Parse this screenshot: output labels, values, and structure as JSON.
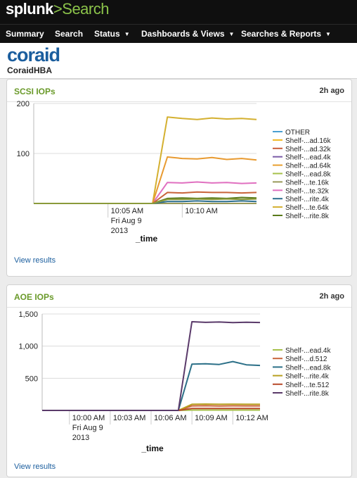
{
  "app": {
    "logo": "splunk",
    "separator": ">",
    "name": "Search"
  },
  "nav": [
    {
      "label": "Summary",
      "dropdown": false
    },
    {
      "label": "Search",
      "dropdown": false
    },
    {
      "label": "Status",
      "dropdown": true
    },
    {
      "label": "Dashboards & Views",
      "dropdown": true
    },
    {
      "label": "Searches & Reports",
      "dropdown": true
    }
  ],
  "header": {
    "brand": "coraid",
    "dashboard": "CoraidHBA"
  },
  "colors": {
    "accent_green": "#6a9a2a",
    "link_blue": "#1b5e9e",
    "brand_blue": "#1b5e9e"
  },
  "panels": [
    {
      "title": "SCSI IOPs",
      "time": "2h ago",
      "link": "View results"
    },
    {
      "title": "AOE IOPs",
      "time": "2h ago",
      "link": "View results"
    }
  ],
  "chart_data": [
    {
      "type": "line",
      "title": "SCSI IOPs",
      "xlabel": "_time",
      "ylabel": "",
      "ylim": [
        0,
        200
      ],
      "yticks": [
        {
          "v": 100,
          "label": "100"
        },
        {
          "v": 200,
          "label": "200"
        }
      ],
      "xticks": [
        {
          "t": "10:05",
          "lines": [
            "10:05 AM",
            "Fri Aug 9",
            "2013"
          ]
        },
        {
          "t": "10:10",
          "lines": [
            "10:10 AM"
          ]
        }
      ],
      "x": [
        "10:00",
        "10:01",
        "10:02",
        "10:03",
        "10:04",
        "10:05",
        "10:06",
        "10:07",
        "10:08",
        "10:09",
        "10:10",
        "10:11",
        "10:12",
        "10:13",
        "10:14",
        "10:15"
      ],
      "grid": true,
      "legend_position": "right",
      "series": [
        {
          "name": "OTHER",
          "color": "#4a9fd1",
          "values": [
            0,
            0,
            0,
            0,
            0,
            0,
            0,
            0,
            0,
            0,
            0,
            0,
            0,
            0,
            0,
            0
          ]
        },
        {
          "name": "Shelf-...ad.16k",
          "color": "#f0b820",
          "values": [
            0,
            0,
            0,
            0,
            0,
            0,
            0,
            0,
            0,
            0,
            0,
            0,
            0,
            0,
            0,
            0
          ]
        },
        {
          "name": "Shelf-...ad.32k",
          "color": "#c85d3a",
          "values": [
            0,
            0,
            0,
            0,
            0,
            0,
            0,
            0,
            0,
            0,
            0,
            0,
            0,
            0,
            0,
            0
          ]
        },
        {
          "name": "Shelf-...ead.4k",
          "color": "#7b5ca8",
          "values": [
            0,
            0,
            0,
            0,
            0,
            0,
            0,
            0,
            0,
            0,
            0,
            0,
            0,
            0,
            0,
            0
          ]
        },
        {
          "name": "Shelf-...ad.64k",
          "color": "#e8a030",
          "values": [
            0,
            0,
            0,
            0,
            0,
            0,
            0,
            0,
            0,
            0,
            0,
            0,
            0,
            0,
            0,
            0
          ]
        },
        {
          "name": "Shelf-...ead.8k",
          "color": "#a6c04a",
          "values": [
            0,
            0,
            0,
            0,
            0,
            0,
            0,
            0,
            0,
            0,
            0,
            0,
            0,
            0,
            0,
            0
          ]
        },
        {
          "name": "Shelf-...te.16k",
          "color": "#9a9a5a",
          "values": [
            0,
            0,
            0,
            0,
            0,
            0,
            0,
            0,
            0,
            0,
            0,
            0,
            0,
            0,
            0,
            0
          ]
        },
        {
          "name": "Shelf-...te.32k",
          "color": "#e070c0",
          "values": [
            0,
            0,
            0,
            0,
            0,
            0,
            0,
            0,
            0,
            42,
            41,
            43,
            41,
            42,
            40,
            41
          ]
        },
        {
          "name": "Shelf-...rite.4k",
          "color": "#2c6e8e",
          "values": [
            0,
            0,
            0,
            0,
            0,
            0,
            0,
            0,
            0,
            4,
            4,
            5,
            4,
            4,
            5,
            4
          ]
        },
        {
          "name": "Shelf-...te.64k",
          "color": "#d4b030",
          "values": [
            0,
            0,
            0,
            0,
            0,
            0,
            0,
            0,
            0,
            173,
            170,
            168,
            171,
            169,
            170,
            168
          ]
        },
        {
          "name": "Shelf-...rite.8k",
          "color": "#5a7a1a",
          "values": [
            0,
            0,
            0,
            0,
            0,
            0,
            0,
            0,
            0,
            10,
            11,
            10,
            11,
            10,
            12,
            11
          ]
        },
        {
          "name": "",
          "color": "#e89a30",
          "values": [
            0,
            0,
            0,
            0,
            0,
            0,
            0,
            0,
            0,
            93,
            90,
            89,
            92,
            88,
            90,
            87
          ]
        },
        {
          "name": "",
          "color": "#c8643a",
          "values": [
            0,
            0,
            0,
            0,
            0,
            0,
            0,
            0,
            0,
            22,
            21,
            23,
            22,
            22,
            21,
            22
          ]
        },
        {
          "name": "",
          "color": "#8a9a3a",
          "values": [
            0,
            0,
            0,
            0,
            0,
            0,
            0,
            0,
            0,
            8,
            8,
            9,
            8,
            9,
            8,
            9
          ]
        }
      ]
    },
    {
      "type": "line",
      "title": "AOE IOPs",
      "xlabel": "_time",
      "ylabel": "",
      "ylim": [
        0,
        1500
      ],
      "yticks": [
        {
          "v": 500,
          "label": "500"
        },
        {
          "v": 1000,
          "label": "1,000"
        },
        {
          "v": 1500,
          "label": "1,500"
        }
      ],
      "xticks": [
        {
          "t": "10:00",
          "lines": [
            "10:00 AM",
            "Fri Aug 9",
            "2013"
          ]
        },
        {
          "t": "10:03",
          "lines": [
            "10:03 AM"
          ]
        },
        {
          "t": "10:06",
          "lines": [
            "10:06 AM"
          ]
        },
        {
          "t": "10:09",
          "lines": [
            "10:09 AM"
          ]
        },
        {
          "t": "10:12",
          "lines": [
            "10:12 AM"
          ]
        }
      ],
      "x": [
        "09:58",
        "09:59",
        "10:00",
        "10:01",
        "10:02",
        "10:03",
        "10:04",
        "10:05",
        "10:06",
        "10:07",
        "10:08",
        "10:09",
        "10:10",
        "10:11",
        "10:12",
        "10:13",
        "10:14"
      ],
      "grid": true,
      "legend_position": "right",
      "series": [
        {
          "name": "Shelf-...ead.4k",
          "color": "#a6c04a",
          "values": [
            0,
            0,
            0,
            0,
            0,
            0,
            0,
            0,
            0,
            0,
            0,
            5,
            5,
            5,
            5,
            5,
            5
          ]
        },
        {
          "name": "Shelf-...d.512",
          "color": "#c8643a",
          "values": [
            0,
            0,
            0,
            0,
            0,
            0,
            0,
            0,
            0,
            0,
            0,
            70,
            72,
            69,
            71,
            70,
            70
          ]
        },
        {
          "name": "Shelf-...ead.8k",
          "color": "#2c7088",
          "values": [
            0,
            0,
            0,
            0,
            0,
            0,
            0,
            0,
            0,
            0,
            0,
            720,
            725,
            715,
            760,
            710,
            700
          ]
        },
        {
          "name": "Shelf-...rite.4k",
          "color": "#b8a020",
          "values": [
            0,
            0,
            0,
            0,
            0,
            0,
            0,
            0,
            0,
            0,
            0,
            95,
            98,
            96,
            97,
            95,
            96
          ]
        },
        {
          "name": "Shelf-...te.512",
          "color": "#b84a2a",
          "values": [
            0,
            0,
            0,
            0,
            0,
            0,
            0,
            0,
            0,
            0,
            0,
            30,
            31,
            30,
            30,
            31,
            30
          ]
        },
        {
          "name": "Shelf-...rite.8k",
          "color": "#5a3a6a",
          "values": [
            0,
            0,
            0,
            0,
            0,
            0,
            0,
            0,
            0,
            0,
            0,
            1380,
            1370,
            1375,
            1365,
            1372,
            1368
          ]
        }
      ]
    }
  ]
}
